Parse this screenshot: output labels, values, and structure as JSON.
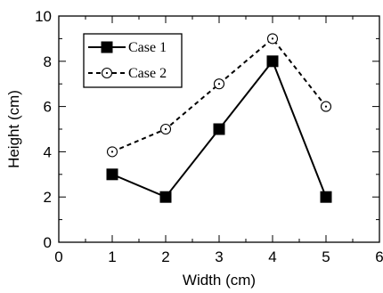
{
  "chart_data": {
    "type": "line",
    "title": "",
    "xlabel": "Width (cm)",
    "ylabel": "Height (cm)",
    "xlim": [
      0,
      6
    ],
    "ylim": [
      0,
      10
    ],
    "x_ticks": [
      0,
      1,
      2,
      3,
      4,
      5,
      6
    ],
    "y_ticks": [
      0,
      2,
      4,
      6,
      8,
      10
    ],
    "x_tick_labels": [
      "0",
      "1",
      "2",
      "3",
      "4",
      "5",
      "6"
    ],
    "y_tick_labels": [
      "0",
      "2",
      "4",
      "6",
      "8",
      "10"
    ],
    "grid": false,
    "legend_position": "top-left",
    "series": [
      {
        "name": "Case 1",
        "x": [
          1,
          2,
          3,
          4,
          5
        ],
        "y": [
          3,
          2,
          5,
          8,
          2
        ],
        "marker": "filled-square",
        "line_style": "solid",
        "color": "#000000"
      },
      {
        "name": "Case 2",
        "x": [
          1,
          2,
          3,
          4,
          5
        ],
        "y": [
          4,
          5,
          7,
          9,
          6
        ],
        "marker": "open-circle-dot",
        "line_style": "dashed",
        "color": "#000000"
      }
    ]
  }
}
